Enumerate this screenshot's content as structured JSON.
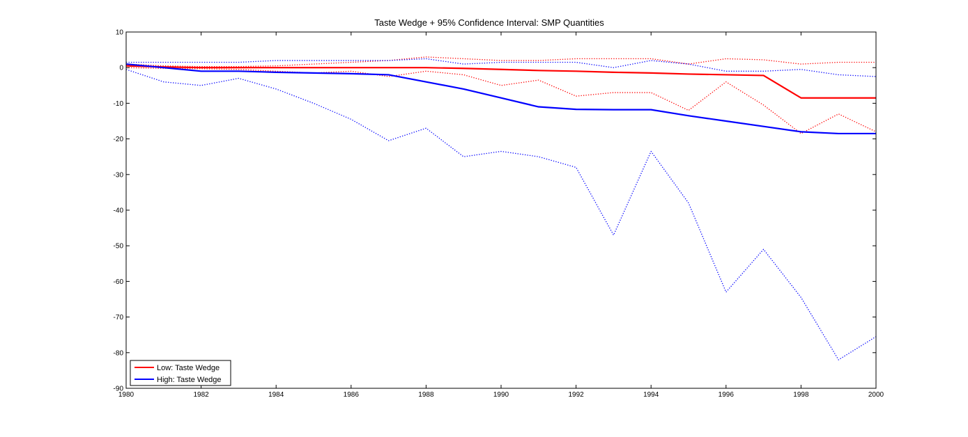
{
  "chart_data": {
    "type": "line",
    "title": "Taste Wedge + 95% Confidence Interval: SMP Quantities",
    "xlabel": "",
    "ylabel": "",
    "xlim": [
      1980,
      2000
    ],
    "ylim": [
      -90,
      10
    ],
    "x_ticks": [
      1980,
      1982,
      1984,
      1986,
      1988,
      1990,
      1992,
      1994,
      1996,
      1998,
      2000
    ],
    "y_ticks": [
      10,
      0,
      -10,
      -20,
      -30,
      -40,
      -50,
      -60,
      -70,
      -80,
      -90
    ],
    "grid": false,
    "legend": {
      "placement": "bottom-left"
    },
    "x": [
      1980,
      1981,
      1982,
      1983,
      1984,
      1985,
      1986,
      1987,
      1988,
      1989,
      1990,
      1991,
      1992,
      1993,
      1994,
      1995,
      1996,
      1997,
      1998,
      1999,
      2000
    ],
    "series": [
      {
        "name": "Low: Taste Wedge",
        "color": "#ff0000",
        "style": "solid",
        "values": [
          0.5,
          0.2,
          0.0,
          0.0,
          0.0,
          0.0,
          0.0,
          0.0,
          0.0,
          -0.2,
          -0.5,
          -0.8,
          -1.0,
          -1.3,
          -1.5,
          -1.8,
          -2.0,
          -2.2,
          -8.5,
          -8.5,
          -8.5
        ]
      },
      {
        "name": "High: Taste Wedge",
        "color": "#0000ff",
        "style": "solid",
        "values": [
          1.0,
          0.0,
          -1.0,
          -1.0,
          -1.3,
          -1.5,
          -1.7,
          -2.0,
          -4.0,
          -6.0,
          -8.5,
          -11.0,
          -11.7,
          -11.8,
          -11.8,
          -13.5,
          -15.0,
          -16.5,
          -18.0,
          -18.5,
          -18.5
        ]
      },
      {
        "color": "#ff0000",
        "style": "dotted",
        "values": [
          1.0,
          0.5,
          0.3,
          0.3,
          0.5,
          1.0,
          1.5,
          2.0,
          3.0,
          2.5,
          2.0,
          2.0,
          2.5,
          2.5,
          2.5,
          1.0,
          2.5,
          2.2,
          1.0,
          1.5,
          1.5
        ]
      },
      {
        "color": "#ff0000",
        "style": "dotted",
        "values": [
          0.0,
          -0.2,
          -0.3,
          -0.5,
          -1.0,
          -1.5,
          -1.0,
          -2.5,
          -1.0,
          -2.0,
          -5.0,
          -3.5,
          -8.0,
          -7.0,
          -7.0,
          -12.0,
          -4.0,
          -10.5,
          -18.5,
          -13.0,
          -18.0
        ]
      },
      {
        "color": "#0000ff",
        "style": "dotted",
        "values": [
          1.5,
          1.5,
          1.5,
          1.5,
          2.0,
          2.0,
          2.0,
          2.0,
          2.5,
          1.0,
          1.5,
          1.5,
          1.5,
          0.0,
          2.0,
          1.0,
          -1.0,
          -1.0,
          -0.5,
          -2.0,
          -2.5
        ]
      },
      {
        "color": "#0000ff",
        "style": "dotted",
        "values": [
          -0.5,
          -4.0,
          -5.0,
          -3.0,
          -6.0,
          -10.0,
          -14.5,
          -20.5,
          -17.0,
          -25.0,
          -23.5,
          -25.0,
          -28.0,
          -47.0,
          -23.5,
          -38.0,
          -63.0,
          -51.0,
          -64.5,
          -82.0,
          -75.5
        ]
      }
    ]
  }
}
